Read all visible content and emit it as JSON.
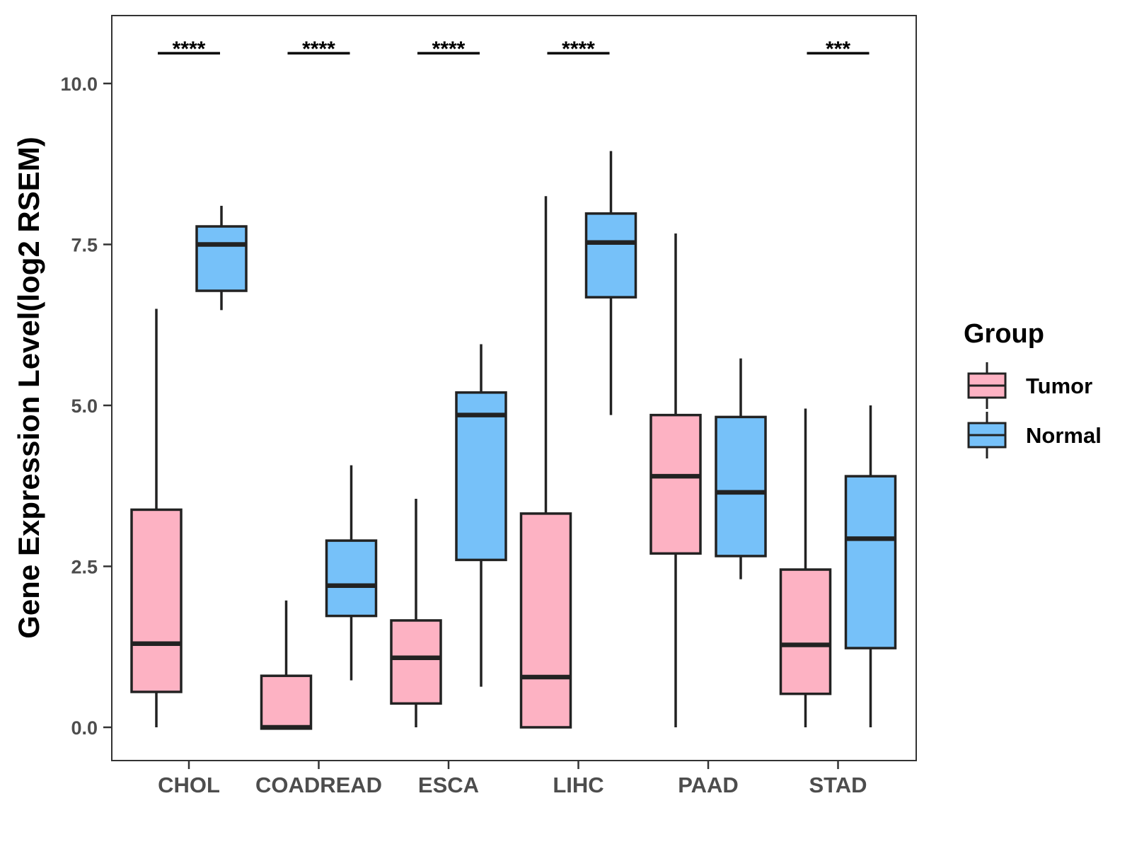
{
  "chart_data": {
    "type": "box",
    "title": "",
    "xlabel": "",
    "ylabel": "Gene Expression Level(log2 RSEM)",
    "ylim": [
      -0.5,
      10.5
    ],
    "yticks": [
      0.0,
      2.5,
      5.0,
      7.5,
      10.0
    ],
    "ytick_labels": [
      "0.0",
      "2.5",
      "5.0",
      "7.5",
      "10.0"
    ],
    "categories": [
      "CHOL",
      "COADREAD",
      "ESCA",
      "LIHC",
      "PAAD",
      "STAD"
    ],
    "legend": {
      "title": "Group",
      "position": "right"
    },
    "series": [
      {
        "name": "Tumor",
        "color": "#FDB2C3",
        "boxes": [
          {
            "whisker_low": 0.0,
            "q1": 0.55,
            "median": 1.3,
            "q3": 3.38,
            "whisker_high": 6.5
          },
          {
            "whisker_low": -0.02,
            "q1": -0.02,
            "median": 0.0,
            "q3": 0.8,
            "whisker_high": 1.97
          },
          {
            "whisker_low": 0.0,
            "q1": 0.37,
            "median": 1.08,
            "q3": 1.66,
            "whisker_high": 3.55
          },
          {
            "whisker_low": 0.0,
            "q1": 0.0,
            "median": 0.78,
            "q3": 3.32,
            "whisker_high": 8.25
          },
          {
            "whisker_low": 0.0,
            "q1": 2.7,
            "median": 3.9,
            "q3": 4.85,
            "whisker_high": 7.67
          },
          {
            "whisker_low": 0.0,
            "q1": 0.52,
            "median": 1.28,
            "q3": 2.45,
            "whisker_high": 4.95
          }
        ]
      },
      {
        "name": "Normal",
        "color": "#76C1F9",
        "boxes": [
          {
            "whisker_low": 6.48,
            "q1": 6.78,
            "median": 7.5,
            "q3": 7.78,
            "whisker_high": 8.1
          },
          {
            "whisker_low": 0.73,
            "q1": 1.73,
            "median": 2.2,
            "q3": 2.9,
            "whisker_high": 4.07
          },
          {
            "whisker_low": 0.63,
            "q1": 2.6,
            "median": 4.85,
            "q3": 5.2,
            "whisker_high": 5.95
          },
          {
            "whisker_low": 4.85,
            "q1": 6.68,
            "median": 7.53,
            "q3": 7.98,
            "whisker_high": 8.95
          },
          {
            "whisker_low": 2.3,
            "q1": 2.66,
            "median": 3.65,
            "q3": 4.82,
            "whisker_high": 5.73
          },
          {
            "whisker_low": 0.0,
            "q1": 1.23,
            "median": 2.93,
            "q3": 3.9,
            "whisker_high": 5.0
          }
        ]
      }
    ],
    "significance": [
      "****",
      "****",
      "****",
      "****",
      "",
      "***"
    ],
    "significance_y": 10.47
  }
}
